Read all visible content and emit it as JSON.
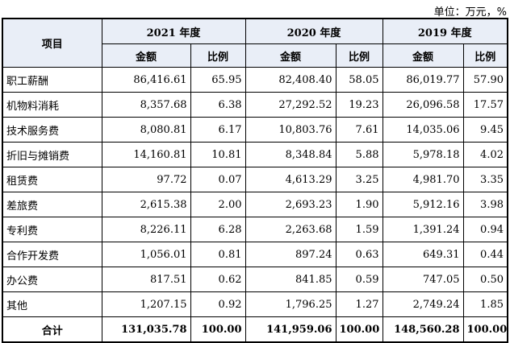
{
  "unit_note": "单位：万元，%",
  "headers": {
    "item": "项目",
    "years": [
      "2021 年度",
      "2020 年度",
      "2019 年度"
    ],
    "amount": "金额",
    "ratio": "比例"
  },
  "rows": [
    {
      "name": "职工薪酬",
      "v": [
        "86,416.61",
        "65.95",
        "82,408.40",
        "58.05",
        "86,019.77",
        "57.90"
      ]
    },
    {
      "name": "机物料消耗",
      "v": [
        "8,357.68",
        "6.38",
        "27,292.52",
        "19.23",
        "26,096.58",
        "17.57"
      ]
    },
    {
      "name": "技术服务费",
      "v": [
        "8,080.81",
        "6.17",
        "10,803.76",
        "7.61",
        "14,035.06",
        "9.45"
      ]
    },
    {
      "name": "折旧与摊销费",
      "v": [
        "14,160.81",
        "10.81",
        "8,348.84",
        "5.88",
        "5,978.18",
        "4.02"
      ]
    },
    {
      "name": "租赁费",
      "v": [
        "97.72",
        "0.07",
        "4,613.29",
        "3.25",
        "4,981.70",
        "3.35"
      ]
    },
    {
      "name": "差旅费",
      "v": [
        "2,615.38",
        "2.00",
        "2,693.23",
        "1.90",
        "5,912.16",
        "3.98"
      ]
    },
    {
      "name": "专利费",
      "v": [
        "8,226.11",
        "6.28",
        "2,263.68",
        "1.59",
        "1,391.24",
        "0.94"
      ]
    },
    {
      "name": "合作开发费",
      "v": [
        "1,056.01",
        "0.81",
        "897.24",
        "0.63",
        "649.31",
        "0.44"
      ]
    },
    {
      "name": "办公费",
      "v": [
        "817.51",
        "0.62",
        "841.85",
        "0.59",
        "747.05",
        "0.50"
      ]
    },
    {
      "name": "其他",
      "v": [
        "1,207.15",
        "0.92",
        "1,796.25",
        "1.27",
        "2,749.24",
        "1.85"
      ]
    }
  ],
  "total": {
    "name": "合计",
    "v": [
      "131,035.78",
      "100.00",
      "141,959.06",
      "100.00",
      "148,560.28",
      "100.00"
    ]
  }
}
